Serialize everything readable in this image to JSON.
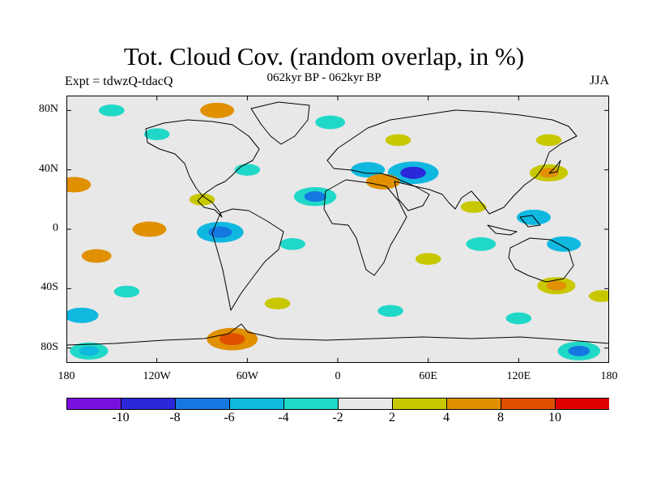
{
  "title": "Tot. Cloud Cov. (random overlap, in %)",
  "experiment": "Expt = tdwzQ-tdacQ",
  "period": "062kyr BP - 062kyr BP",
  "season": "JJA",
  "map": {
    "projection": "cylindrical equidistant",
    "lon_range": [
      -180,
      180
    ],
    "lat_range": [
      -90,
      90
    ],
    "lat_ticks": [
      "80N",
      "40N",
      "0",
      "40S",
      "80S"
    ],
    "lon_ticks": [
      "180",
      "120W",
      "60W",
      "0",
      "60E",
      "120E",
      "180"
    ],
    "background_color": "#e8e8e8",
    "coastline_color": "#000000"
  },
  "colorbar": {
    "labels": [
      "-10",
      "-8",
      "-6",
      "-4",
      "-2",
      "2",
      "4",
      "8",
      "10"
    ],
    "colors": [
      "#7a10e0",
      "#2a28d8",
      "#1478e0",
      "#10b8e0",
      "#20d8c8",
      "#e8e8e8",
      "#c8c800",
      "#e09000",
      "#e05000",
      "#e00000"
    ]
  },
  "chart_data": {
    "type": "heatmap",
    "title": "Tot. Cloud Cov. (random overlap, in %)",
    "subtitle": "062kyr BP - 062kyr BP",
    "levels": [
      -10,
      -8,
      -6,
      -4,
      -2,
      2,
      4,
      8,
      10
    ],
    "x": {
      "range": [
        -180,
        180
      ],
      "ticks": [
        -180,
        -120,
        -60,
        0,
        60,
        120,
        180
      ]
    },
    "y": {
      "range": [
        -90,
        90
      ],
      "ticks": [
        80,
        40,
        0,
        -40,
        -80
      ]
    },
    "anomaly_regions": [
      {
        "lon": 50,
        "lat": 38,
        "value": -9
      },
      {
        "lon": -15,
        "lat": 22,
        "value": -7
      },
      {
        "lon": -78,
        "lat": -2,
        "value": -8
      },
      {
        "lon": 160,
        "lat": -82,
        "value": -7
      },
      {
        "lon": -165,
        "lat": -82,
        "value": -6
      },
      {
        "lon": -170,
        "lat": -58,
        "value": -5
      },
      {
        "lon": 130,
        "lat": 8,
        "value": -5
      },
      {
        "lon": 150,
        "lat": -10,
        "value": -5
      },
      {
        "lon": 20,
        "lat": 40,
        "value": -5
      },
      {
        "lon": 95,
        "lat": -10,
        "value": -4
      },
      {
        "lon": -5,
        "lat": 72,
        "value": -4
      },
      {
        "lon": -120,
        "lat": 64,
        "value": -3
      },
      {
        "lon": -150,
        "lat": 80,
        "value": -3
      },
      {
        "lon": -60,
        "lat": 40,
        "value": -3
      },
      {
        "lon": -30,
        "lat": -10,
        "value": -3
      },
      {
        "lon": 35,
        "lat": -55,
        "value": -3
      },
      {
        "lon": 120,
        "lat": -60,
        "value": -3
      },
      {
        "lon": -140,
        "lat": -42,
        "value": -3
      },
      {
        "lon": -70,
        "lat": -74,
        "value": 9
      },
      {
        "lon": 140,
        "lat": 38,
        "value": 6
      },
      {
        "lon": 145,
        "lat": -38,
        "value": 6
      },
      {
        "lon": -80,
        "lat": 80,
        "value": 5
      },
      {
        "lon": -125,
        "lat": 0,
        "value": 5
      },
      {
        "lon": 30,
        "lat": 32,
        "value": 5
      },
      {
        "lon": -175,
        "lat": 30,
        "value": 5
      },
      {
        "lon": -160,
        "lat": -18,
        "value": 4
      },
      {
        "lon": 90,
        "lat": 15,
        "value": 3
      },
      {
        "lon": -90,
        "lat": 20,
        "value": 3
      },
      {
        "lon": 60,
        "lat": -20,
        "value": 3
      },
      {
        "lon": 140,
        "lat": 60,
        "value": 3
      },
      {
        "lon": 175,
        "lat": -45,
        "value": 3
      },
      {
        "lon": 40,
        "lat": 60,
        "value": 3
      },
      {
        "lon": -40,
        "lat": -50,
        "value": 3
      }
    ]
  }
}
